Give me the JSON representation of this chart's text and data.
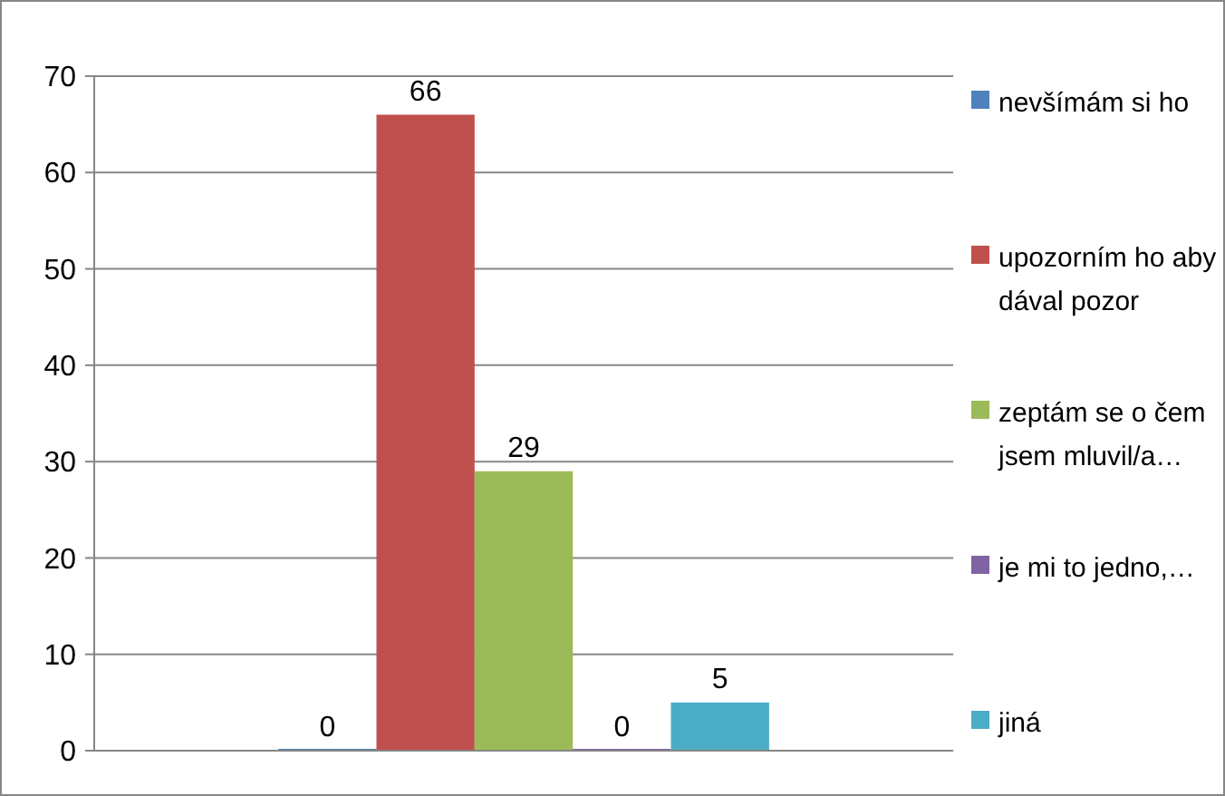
{
  "chart_data": {
    "type": "bar",
    "categories": [
      null
    ],
    "series": [
      {
        "name": "nevšímám si ho",
        "color": "#4f81bd",
        "values": [
          0
        ]
      },
      {
        "name": "upozorním ho aby dával pozor",
        "color": "#c0504d",
        "values": [
          66
        ]
      },
      {
        "name": "zeptám se o čem jsem mluvil/a…",
        "color": "#9bbb59",
        "values": [
          29
        ]
      },
      {
        "name": "je mi to jedno,…",
        "color": "#8064a2",
        "values": [
          0
        ]
      },
      {
        "name": "jiná",
        "color": "#4bacc6",
        "values": [
          5
        ]
      }
    ],
    "ylim": [
      0,
      70
    ],
    "yticks": [
      0,
      10,
      20,
      30,
      40,
      50,
      60,
      70
    ],
    "grid": "y",
    "legend": "right",
    "data_labels": true
  }
}
